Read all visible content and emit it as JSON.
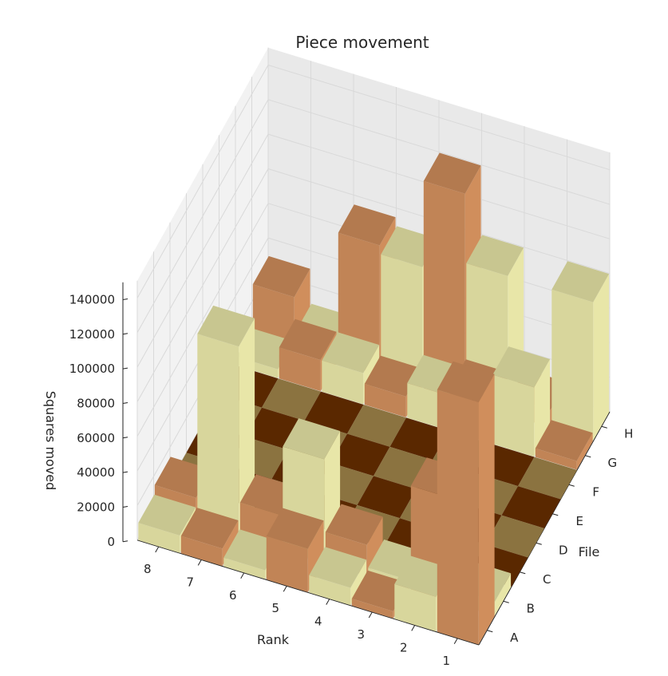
{
  "chart_data": {
    "type": "bar3d",
    "title": "Piece movement",
    "xlabel": "File",
    "ylabel": "Rank",
    "zlabel": "Squares moved",
    "x_ticks": [
      "A",
      "B",
      "C",
      "D",
      "E",
      "F",
      "G",
      "H"
    ],
    "y_ticks": [
      "1",
      "2",
      "3",
      "4",
      "5",
      "6",
      "7",
      "8"
    ],
    "z_ticks": [
      "0",
      "20000",
      "40000",
      "60000",
      "80000",
      "100000",
      "120000",
      "140000"
    ],
    "zlim": [
      0,
      150000
    ],
    "grid": true,
    "colors": {
      "light": "#e8e6a8",
      "dark": "#d08e5c",
      "board_light": "#8b7340",
      "board_dark": "#5a2800"
    },
    "values": [
      [
        140000,
        8000,
        0,
        0,
        0,
        0,
        5000,
        80000
      ],
      [
        20000,
        60000,
        0,
        0,
        0,
        0,
        40000,
        10000
      ],
      [
        4000,
        5000,
        0,
        0,
        0,
        0,
        25000,
        80000
      ],
      [
        10000,
        18000,
        0,
        0,
        0,
        0,
        20000,
        120000
      ],
      [
        25000,
        60000,
        0,
        0,
        0,
        0,
        12000,
        70000
      ],
      [
        5000,
        20000,
        0,
        0,
        0,
        0,
        18000,
        75000
      ],
      [
        10000,
        110000,
        0,
        0,
        0,
        0,
        18000,
        10000
      ],
      [
        10000,
        15000,
        0,
        0,
        0,
        0,
        5000,
        30000
      ]
    ]
  }
}
